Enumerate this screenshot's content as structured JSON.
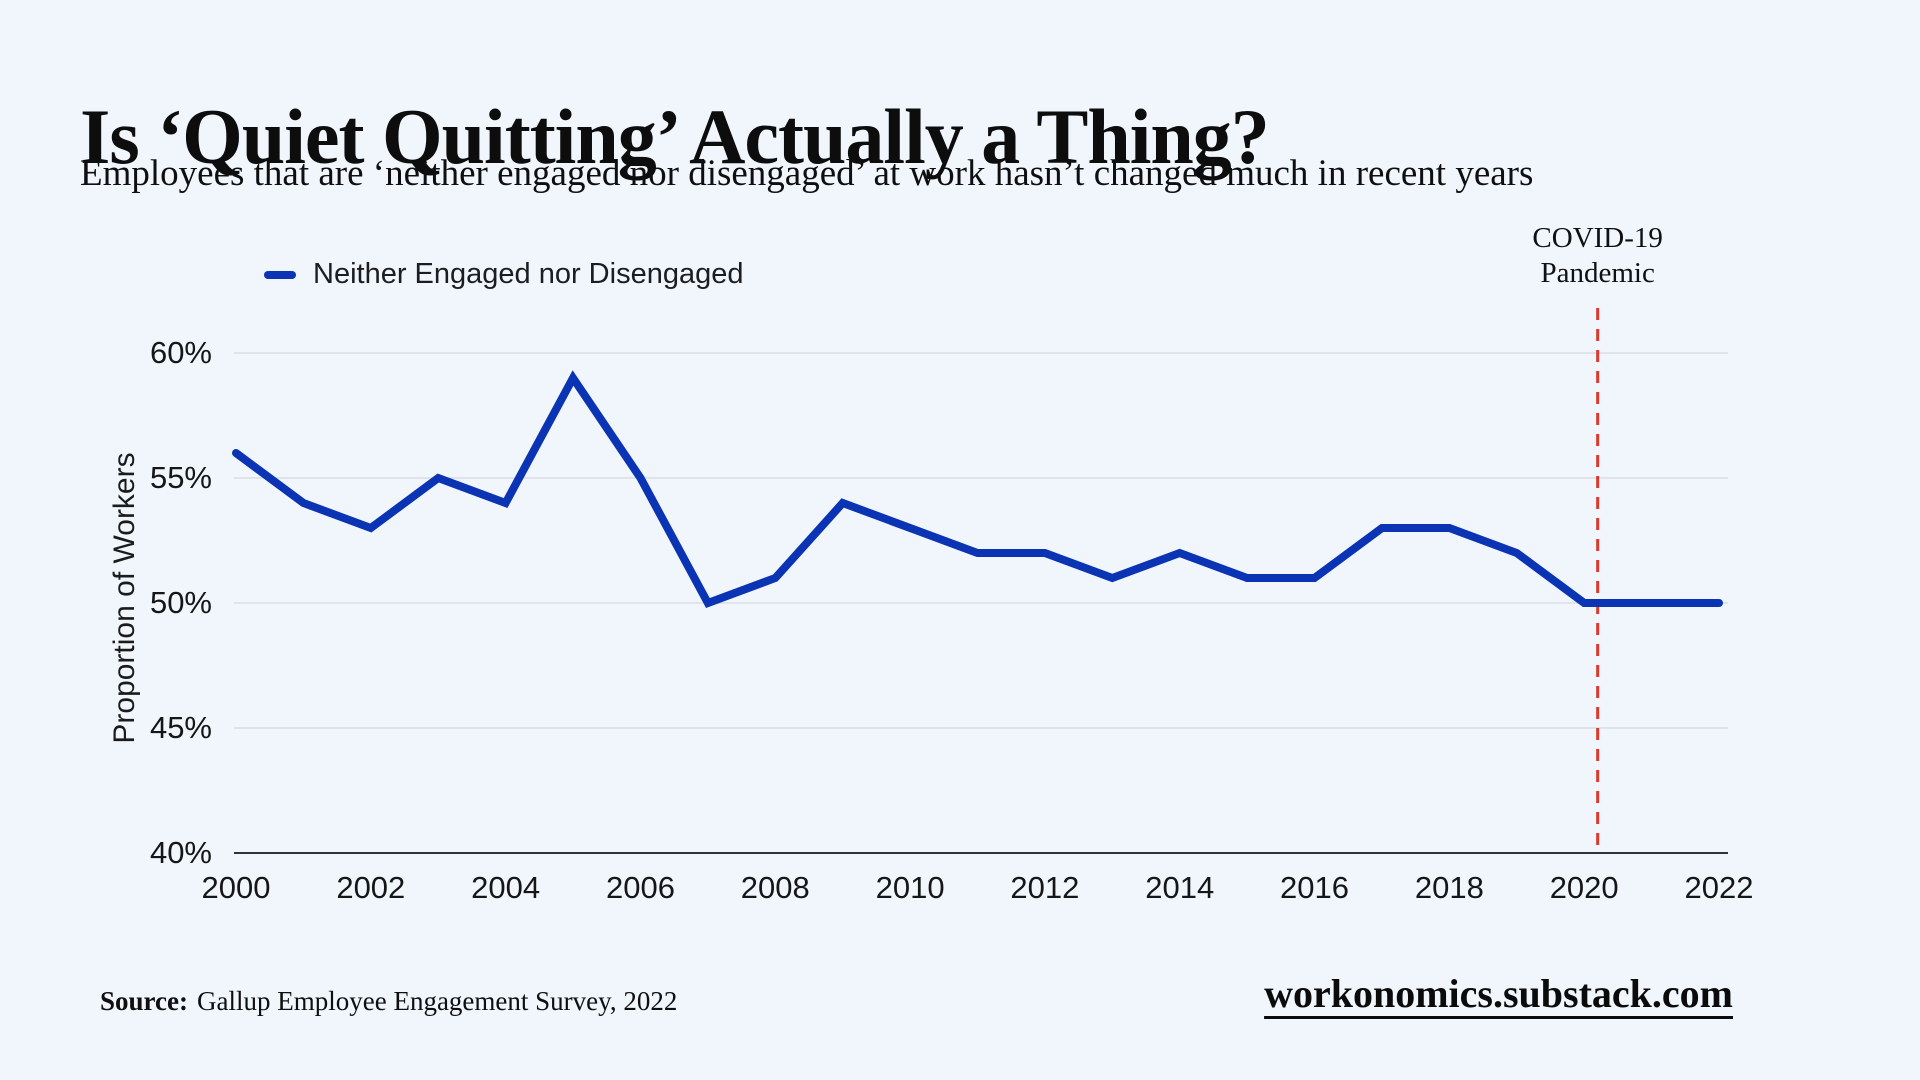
{
  "header": {
    "title": "Is ‘Quiet Quitting’ Actually a Thing?",
    "subtitle": "Employees that are ‘neither engaged nor disengaged’ at work hasn’t changed much in recent years"
  },
  "legend": {
    "label": "Neither Engaged nor Disengaged"
  },
  "annotation": {
    "line1": "COVID-19",
    "line2": "Pandemic",
    "year_position": 2020.2
  },
  "source": {
    "label": "Source:",
    "text": "Gallup Employee Engagement Survey, 2022"
  },
  "footer": {
    "website": "workonomics.substack.com"
  },
  "colors": {
    "background": "#f0f6fc",
    "line": "#0b34b4",
    "annotation_line": "#e0392b",
    "gridline": "#dadde2",
    "axis": "#333333",
    "text": "#111111"
  },
  "chart_data": {
    "type": "line",
    "x": [
      2000,
      2001,
      2002,
      2003,
      2004,
      2005,
      2006,
      2007,
      2008,
      2009,
      2010,
      2011,
      2012,
      2013,
      2014,
      2015,
      2016,
      2017,
      2018,
      2019,
      2020,
      2021,
      2022
    ],
    "series": [
      {
        "name": "Neither Engaged nor Disengaged",
        "values": [
          56,
          54,
          53,
          55,
          54,
          59,
          55,
          50,
          51,
          54,
          53,
          52,
          52,
          51,
          52,
          51,
          51,
          53,
          53,
          52,
          50,
          50,
          50
        ]
      }
    ],
    "title": "Is ‘Quiet Quitting’ Actually a Thing?",
    "xlabel": "",
    "ylabel": "Proportion of Workers",
    "ylim": [
      40,
      60
    ],
    "yticks": [
      40,
      45,
      50,
      55,
      60
    ],
    "ytick_suffix": "%",
    "xticks": [
      2000,
      2002,
      2004,
      2006,
      2008,
      2010,
      2012,
      2014,
      2016,
      2018,
      2020,
      2022
    ],
    "grid": true,
    "legend_position": "top-left",
    "annotation_label": "COVID-19 Pandemic"
  }
}
